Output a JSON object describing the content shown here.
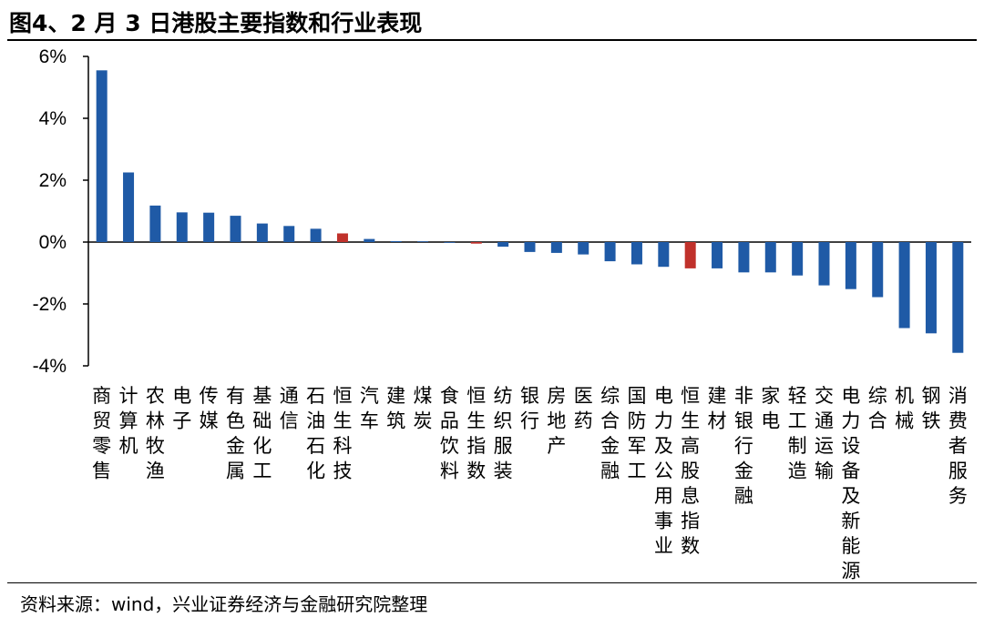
{
  "header": {
    "title": "图4、2 月 3 日港股主要指数和行业表现"
  },
  "footer": {
    "source": "资料来源：wind，兴业证券经济与金融研究院整理"
  },
  "chart_data": {
    "type": "bar",
    "title": "图4、2 月 3 日港股主要指数和行业表现",
    "ylim": [
      -4,
      6
    ],
    "yticks": [
      "6%",
      "4%",
      "2%",
      "0%",
      "-2%",
      "-4%"
    ],
    "ytick_values": [
      6,
      4,
      2,
      0,
      -2,
      -4
    ],
    "colors": {
      "default": "#1f5aa6",
      "highlight": "#c0312b"
    },
    "categories": [
      "商贸零售",
      "计算机",
      "农林牧渔",
      "电子",
      "传媒",
      "有色金属",
      "基础化工",
      "通信",
      "石油石化",
      "恒生科技",
      "汽车",
      "建筑",
      "煤炭",
      "食品饮料",
      "恒生指数",
      "纺织服装",
      "银行",
      "房地产",
      "医药",
      "综合金融",
      "国防军工",
      "电力及公用事业",
      "恒生高股息指数",
      "建材",
      "非银行金融",
      "家电",
      "轻工制造",
      "交通运输",
      "电力设备及新能源",
      "综合",
      "机械",
      "钢铁",
      "消费者服务"
    ],
    "values": [
      5.55,
      2.25,
      1.18,
      0.96,
      0.95,
      0.85,
      0.6,
      0.52,
      0.43,
      0.28,
      0.1,
      0.03,
      0.01,
      -0.02,
      -0.05,
      -0.15,
      -0.32,
      -0.35,
      -0.4,
      -0.62,
      -0.72,
      -0.8,
      -0.85,
      -0.85,
      -0.98,
      -0.98,
      -1.08,
      -1.4,
      -1.52,
      -1.78,
      -2.78,
      -2.95,
      -3.58
    ],
    "highlighted": [
      "恒生科技",
      "恒生指数",
      "恒生高股息指数"
    ]
  }
}
